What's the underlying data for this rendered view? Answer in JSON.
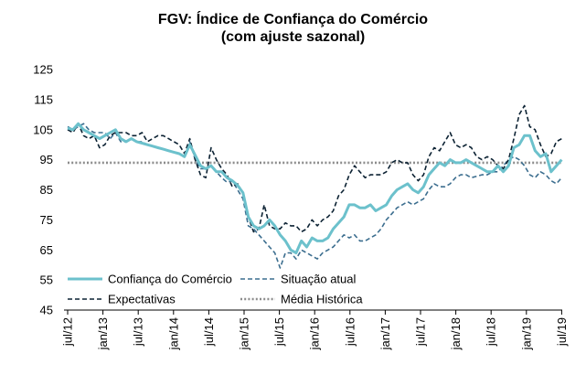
{
  "chart_data": {
    "type": "line",
    "title": "FGV: Índice de Confiança do Comércio",
    "subtitle": "(com ajuste sazonal)",
    "xlabel": "",
    "ylabel": "",
    "ylim": [
      45,
      125
    ],
    "yticks": [
      45,
      55,
      65,
      75,
      85,
      95,
      105,
      115,
      125
    ],
    "x_tick_labels": [
      "jul/12",
      "jan/13",
      "jul/13",
      "jan/14",
      "jul/14",
      "jan/15",
      "jul/15",
      "jan/16",
      "jul/16",
      "jan/17",
      "jul/17",
      "jan/18",
      "jul/18",
      "jan/19",
      "jul/19"
    ],
    "x_range": [
      "jul/12",
      "jul/19"
    ],
    "grid": false,
    "legend_position": "bottom-left",
    "colors": {
      "confianca": "#6cc1cc",
      "situacao": "#3c6e8f",
      "expectativas": "#0c2233",
      "media": "#8c8c8c"
    },
    "series": [
      {
        "name": "Confiança do Comércio",
        "style": "solid",
        "values": [
          105.5,
          105,
          107,
          105,
          104,
          103,
          102,
          103,
          104,
          105,
          102,
          101,
          102,
          101,
          100.5,
          100,
          99.5,
          99,
          98.5,
          98,
          97.5,
          97,
          96,
          100,
          96.5,
          93,
          92,
          93,
          91,
          91,
          89,
          88,
          86.5,
          84,
          76,
          73,
          72,
          73,
          75,
          73,
          70,
          68,
          65,
          64,
          68,
          66,
          69,
          68,
          68,
          69,
          72,
          74,
          76,
          80,
          80,
          79,
          79,
          80,
          78,
          79,
          80,
          83,
          85,
          86,
          87,
          85,
          84,
          86,
          90,
          92,
          94,
          93,
          95,
          94,
          94,
          95,
          94,
          93,
          92,
          91,
          91,
          93,
          91,
          93,
          99,
          100,
          103,
          103,
          98,
          96,
          97,
          91,
          93,
          95
        ]
      },
      {
        "name": "Situação atual",
        "style": "dashed",
        "values": [
          106,
          105,
          106,
          107,
          105,
          104,
          104,
          104,
          102,
          104,
          101,
          101,
          102,
          101,
          101,
          100,
          99.5,
          99,
          98.5,
          98,
          97.5,
          97,
          96,
          101,
          95,
          92,
          92,
          93,
          91,
          89,
          87.5,
          88,
          85,
          82,
          73,
          72,
          70,
          68,
          66,
          64,
          59,
          64,
          64,
          62,
          65,
          64,
          63,
          62,
          64,
          65,
          66,
          68,
          70,
          69,
          70,
          68,
          68,
          69,
          70,
          72,
          75,
          77,
          79,
          80,
          81,
          80,
          81,
          82,
          85,
          87,
          86,
          86,
          87,
          89,
          90,
          90,
          89,
          89.5,
          90,
          90,
          91,
          91,
          93,
          95,
          96,
          95,
          93,
          90,
          89,
          91,
          90,
          88,
          87,
          89
        ]
      },
      {
        "name": "Expectativas",
        "style": "dashed",
        "values": [
          105,
          104,
          107,
          103,
          102,
          103,
          99,
          100,
          103,
          104,
          104,
          104,
          103,
          103,
          104,
          101,
          102,
          103,
          103,
          102,
          101,
          100,
          97,
          102,
          95,
          90,
          89,
          99,
          95,
          92,
          90,
          86,
          87,
          84,
          76,
          71,
          72,
          80,
          73,
          72,
          72,
          74,
          73,
          73,
          71,
          72,
          75,
          73,
          75,
          76,
          78,
          83,
          85,
          90,
          93,
          91,
          89,
          90,
          90,
          90,
          91,
          94,
          95,
          94,
          94,
          90,
          88,
          90,
          96,
          99,
          98,
          101,
          104,
          100,
          99,
          100,
          99,
          96,
          95,
          96,
          95,
          93,
          92,
          95,
          102,
          110,
          113,
          106,
          105,
          100,
          96,
          97,
          101,
          102
        ]
      },
      {
        "name": "Média Histórica",
        "style": "dotted",
        "values": [
          94
        ]
      }
    ]
  }
}
